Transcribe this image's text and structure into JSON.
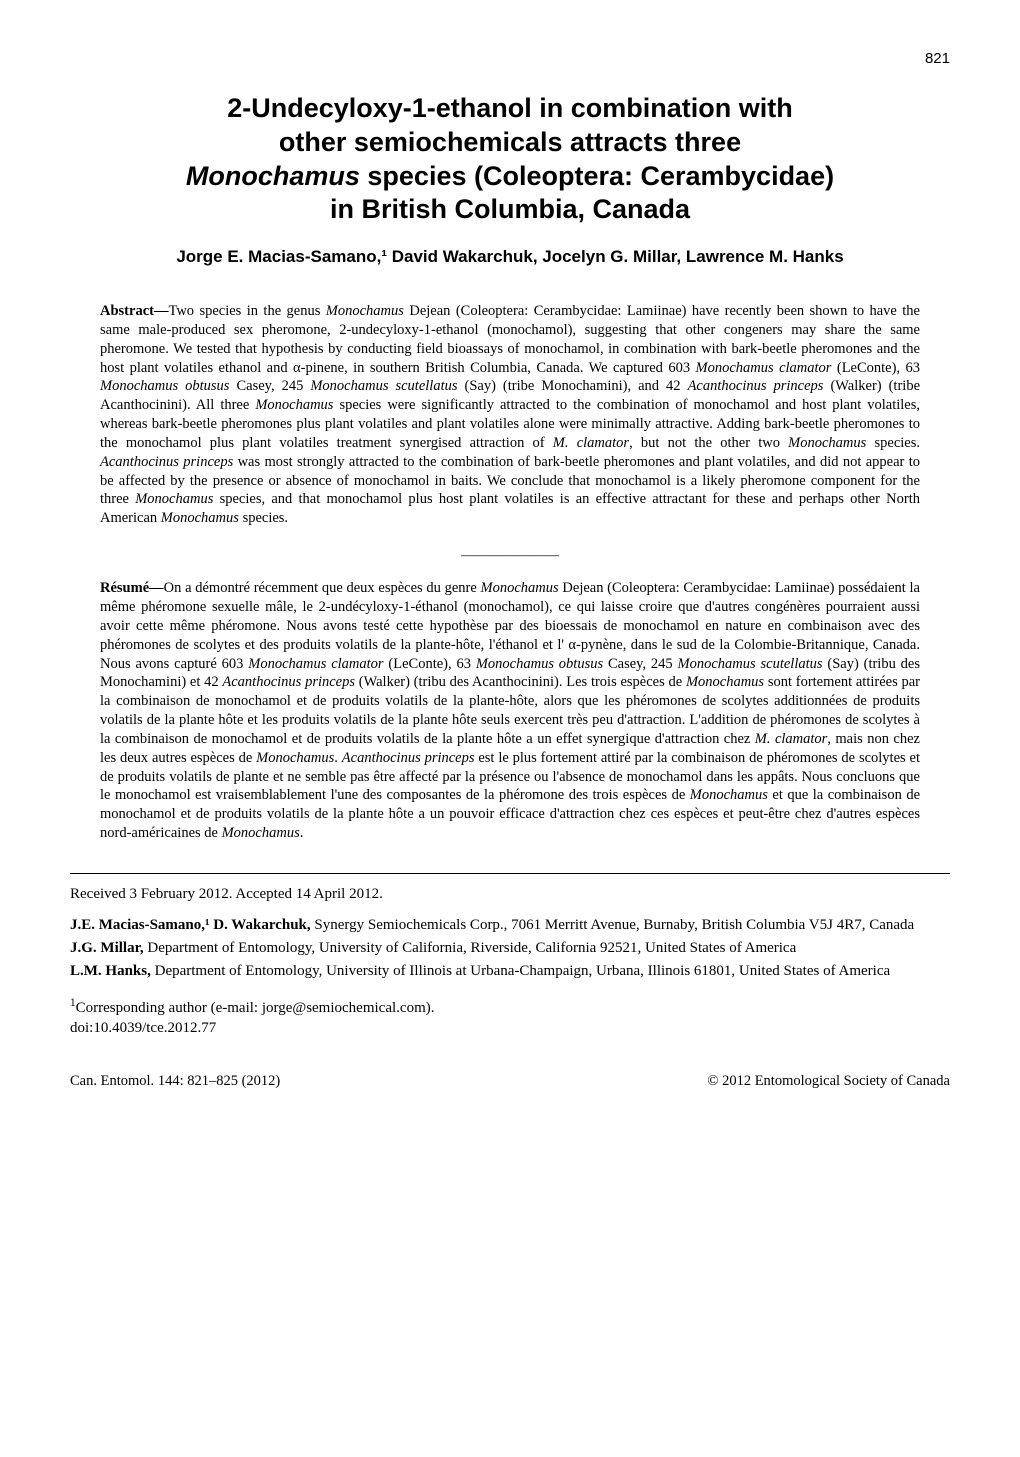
{
  "pageNumber": "821",
  "title": {
    "line1": "2-Undecyloxy-1-ethanol in combination with",
    "line2": "other semiochemicals attracts three",
    "line3_prefix": "",
    "line3_italic": "Monochamus",
    "line3_suffix": " species (Coleoptera: Cerambycidae)",
    "line4": "in British Columbia, Canada"
  },
  "authors": "Jorge E. Macias-Samano,¹ David Wakarchuk, Jocelyn G. Millar, Lawrence M. Hanks",
  "abstract": {
    "label": "Abstract—",
    "text_parts": [
      {
        "t": "Two species in the genus "
      },
      {
        "t": "Monochamus",
        "i": true
      },
      {
        "t": " Dejean (Coleoptera: Cerambycidae: Lamiinae) have recently been shown to have the same male-produced sex pheromone, 2-undecyloxy-1-ethanol (monochamol), suggesting that other congeners may share the same pheromone. We tested that hypothesis by conducting field bioassays of monochamol, in combination with bark-beetle pheromones and the host plant volatiles ethanol and α-pinene, in southern British Columbia, Canada. We captured 603 "
      },
      {
        "t": "Monochamus clamator",
        "i": true
      },
      {
        "t": " (LeConte), 63 "
      },
      {
        "t": "Monochamus obtusus",
        "i": true
      },
      {
        "t": " Casey, 245 "
      },
      {
        "t": "Monochamus scutellatus",
        "i": true
      },
      {
        "t": " (Say) (tribe Monochamini), and 42 "
      },
      {
        "t": "Acanthocinus princeps",
        "i": true
      },
      {
        "t": " (Walker) (tribe Acanthocinini). All three "
      },
      {
        "t": "Monochamus",
        "i": true
      },
      {
        "t": " species were significantly attracted to the combination of monochamol and host plant volatiles, whereas bark-beetle pheromones plus plant volatiles and plant volatiles alone were minimally attractive. Adding bark-beetle pheromones to the monochamol plus plant volatiles treatment synergised attraction of "
      },
      {
        "t": "M. clamator",
        "i": true
      },
      {
        "t": ", but not the other two "
      },
      {
        "t": "Monochamus",
        "i": true
      },
      {
        "t": " species. "
      },
      {
        "t": "Acanthocinus princeps",
        "i": true
      },
      {
        "t": " was most strongly attracted to the combination of bark-beetle pheromones and plant volatiles, and did not appear to be affected by the presence or absence of monochamol in baits. We conclude that monochamol is a likely pheromone component for the three "
      },
      {
        "t": "Monochamus",
        "i": true
      },
      {
        "t": " species, and that monochamol plus host plant volatiles is an effective attractant for these and perhaps other North American "
      },
      {
        "t": "Monochamus",
        "i": true
      },
      {
        "t": " species."
      }
    ]
  },
  "resume": {
    "label": "Résumé—",
    "text_parts": [
      {
        "t": "On a démontré récemment que deux espèces du genre "
      },
      {
        "t": "Monochamus",
        "i": true
      },
      {
        "t": " Dejean (Coleoptera: Cerambycidae: Lamiinae) possédaient la même phéromone sexuelle mâle, le 2-undécyloxy-1-éthanol (monochamol), ce qui laisse croire que d'autres congénères pourraient aussi avoir cette même phéromone. Nous avons testé cette hypothèse par des bioessais de monochamol en nature en combinaison avec des phéromones de scolytes et des produits volatils de la plante-hôte, l'éthanol et l' α-pynène, dans le sud de la Colombie-Britannique, Canada. Nous avons capturé 603 "
      },
      {
        "t": "Monochamus clamator",
        "i": true
      },
      {
        "t": " (LeConte), 63 "
      },
      {
        "t": "Monochamus obtusus",
        "i": true
      },
      {
        "t": " Casey, 245 "
      },
      {
        "t": "Monochamus scutellatus",
        "i": true
      },
      {
        "t": " (Say) (tribu des Monochamini) et 42 "
      },
      {
        "t": "Acanthocinus princeps",
        "i": true
      },
      {
        "t": " (Walker) (tribu des Acanthocinini). Les trois espèces de "
      },
      {
        "t": "Monochamus",
        "i": true
      },
      {
        "t": " sont fortement attirées par la combinaison de monochamol et de produits volatils de la plante-hôte, alors que les phéromones de scolytes additionnées de produits volatils de la plante hôte et les produits volatils de la plante hôte seuls exercent très peu d'attraction. L'addition de phéromones de scolytes à la combinaison de monochamol et de produits volatils de la plante hôte a un effet synergique d'attraction chez "
      },
      {
        "t": "M. clamator",
        "i": true
      },
      {
        "t": ", mais non chez les deux autres espèces de "
      },
      {
        "t": "Monochamus",
        "i": true
      },
      {
        "t": ". "
      },
      {
        "t": "Acanthocinus princeps",
        "i": true
      },
      {
        "t": " est le plus fortement attiré par la combinaison de phéromones de scolytes et de produits volatils de plante et ne semble pas être affecté par la présence ou l'absence de monochamol dans les appâts. Nous concluons que le monochamol est vraisemblablement l'une des composantes de la phéromone des trois espèces de "
      },
      {
        "t": "Monochamus",
        "i": true
      },
      {
        "t": " et que la combinaison de monochamol et de produits volatils de la plante hôte a un pouvoir efficace d'attraction chez ces espèces et peut-être chez d'autres espèces nord-américaines de "
      },
      {
        "t": "Monochamus",
        "i": true
      },
      {
        "t": "."
      }
    ]
  },
  "received": "Received 3 February 2012. Accepted 14 April 2012.",
  "affiliations": [
    {
      "name": "J.E. Macias-Samano,¹ D. Wakarchuk,",
      "rest": " Synergy Semiochemicals Corp., 7061 Merritt Avenue, Burnaby, British Columbia V5J 4R7, Canada"
    },
    {
      "name": "J.G. Millar,",
      "rest": " Department of Entomology, University of California, Riverside, California 92521, United States of America"
    },
    {
      "name": "L.M. Hanks,",
      "rest": " Department of Entomology, University of Illinois at Urbana-Champaign, Urbana, Illinois 61801, United States of America"
    }
  ],
  "corresponding": {
    "sup": "1",
    "text": "Corresponding author (e-mail: jorge@semiochemical.com).",
    "doi": "doi:10.4039/tce.2012.77"
  },
  "footer": {
    "left_journal": "Can. Entomol.",
    "left_rest": " 144: 821–825 (2012)",
    "right": "© 2012 Entomological Society of Canada"
  },
  "separator": "———————"
}
